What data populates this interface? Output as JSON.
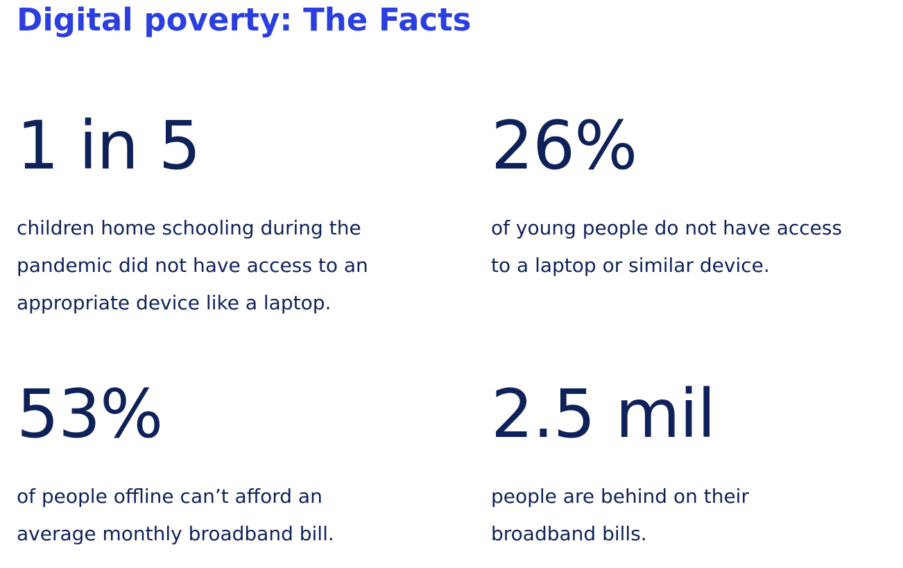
{
  "page": {
    "title": "Digital poverty: The Facts"
  },
  "facts": [
    {
      "stat": "1 in 5",
      "description": "children home schooling during the\npandemic did not have access to an\nappropriate device like a laptop."
    },
    {
      "stat": "26%",
      "description": "of young people do not have access\nto a laptop or similar device."
    },
    {
      "stat": "53%",
      "description": "of people offline can’t afford an\naverage monthly broadband bill."
    },
    {
      "stat": "2.5 mil",
      "description": "people are behind on their\nbroadband bills."
    }
  ],
  "colors": {
    "title": "#2b3fe0",
    "text": "#0f2159",
    "background": "#ffffff"
  }
}
